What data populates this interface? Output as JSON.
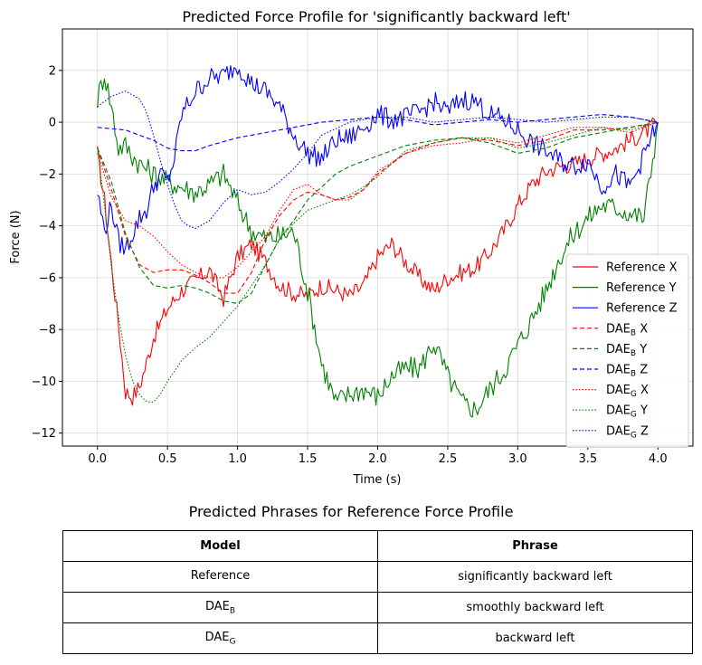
{
  "chart_data": {
    "type": "line",
    "title": "Predicted Force Profile for 'significantly backward left'",
    "xlabel": "Time (s)",
    "ylabel": "Force (N)",
    "xlim": [
      -0.25,
      4.25
    ],
    "ylim": [
      -12.5,
      3.6
    ],
    "xticks": [
      0.0,
      0.5,
      1.0,
      1.5,
      2.0,
      2.5,
      3.0,
      3.5,
      4.0
    ],
    "xtick_labels": [
      "0.0",
      "0.5",
      "1.0",
      "1.5",
      "2.0",
      "2.5",
      "3.0",
      "3.5",
      "4.0"
    ],
    "yticks": [
      -12,
      -10,
      -8,
      -6,
      -4,
      -2,
      0,
      2
    ],
    "ytick_labels": [
      "−12",
      "−10",
      "−8",
      "−6",
      "−4",
      "−2",
      "0",
      "2"
    ],
    "grid": true,
    "legend_position": "lower-right",
    "series": [
      {
        "name": "Reference X",
        "name_base": "Reference X",
        "color": "#ff0000",
        "style": "solid",
        "noise": 0.35,
        "x": [
          0,
          0.05,
          0.1,
          0.15,
          0.2,
          0.25,
          0.3,
          0.35,
          0.4,
          0.5,
          0.6,
          0.8,
          0.9,
          1.0,
          1.1,
          1.2,
          1.3,
          1.4,
          1.5,
          1.6,
          1.7,
          1.8,
          1.9,
          2.0,
          2.1,
          2.2,
          2.3,
          2.4,
          2.5,
          2.6,
          2.7,
          2.8,
          2.9,
          3.0,
          3.1,
          3.2,
          3.3,
          3.4,
          3.5,
          3.6,
          3.7,
          3.8,
          3.9,
          4.0
        ],
        "y": [
          -1.2,
          -3.0,
          -5.5,
          -7.8,
          -10.4,
          -10.6,
          -10.2,
          -9.3,
          -8.3,
          -7.2,
          -6.5,
          -5.7,
          -6.8,
          -5.2,
          -4.7,
          -5.4,
          -6.3,
          -6.6,
          -6.7,
          -6.3,
          -6.5,
          -6.7,
          -6.3,
          -5.2,
          -4.7,
          -5.4,
          -6.0,
          -6.5,
          -6.0,
          -5.8,
          -5.6,
          -5.0,
          -4.2,
          -3.2,
          -2.4,
          -1.9,
          -1.7,
          -1.6,
          -1.4,
          -1.2,
          -1.0,
          -0.7,
          -0.4,
          0.0
        ]
      },
      {
        "name": "Reference Y",
        "name_base": "Reference Y",
        "color": "#008000",
        "style": "solid",
        "noise": 0.45,
        "x": [
          0,
          0.05,
          0.1,
          0.15,
          0.2,
          0.25,
          0.3,
          0.4,
          0.5,
          0.6,
          0.7,
          0.8,
          0.9,
          1.0,
          1.1,
          1.2,
          1.3,
          1.4,
          1.5,
          1.6,
          1.7,
          1.8,
          1.9,
          2.0,
          2.1,
          2.2,
          2.3,
          2.4,
          2.5,
          2.6,
          2.7,
          2.8,
          2.9,
          3.0,
          3.1,
          3.2,
          3.3,
          3.4,
          3.5,
          3.6,
          3.7,
          3.8,
          3.9,
          4.0
        ],
        "y": [
          0.9,
          1.9,
          0.6,
          -1.0,
          -0.9,
          -1.3,
          -1.6,
          -2.0,
          -2.3,
          -2.5,
          -2.7,
          -2.4,
          -2.0,
          -3.1,
          -4.2,
          -4.5,
          -4.4,
          -4.2,
          -6.5,
          -9.3,
          -10.8,
          -10.5,
          -10.3,
          -10.6,
          -9.8,
          -9.5,
          -9.5,
          -8.5,
          -9.8,
          -10.8,
          -11.1,
          -10.3,
          -9.6,
          -8.6,
          -7.6,
          -6.5,
          -5.2,
          -4.3,
          -3.7,
          -3.2,
          -3.3,
          -3.5,
          -3.7,
          0.0
        ]
      },
      {
        "name": "Reference Z",
        "name_base": "Reference Z",
        "color": "#0000ff",
        "style": "solid",
        "noise": 0.4,
        "x": [
          0,
          0.05,
          0.1,
          0.15,
          0.2,
          0.25,
          0.3,
          0.35,
          0.4,
          0.45,
          0.5,
          0.55,
          0.6,
          0.7,
          0.8,
          0.9,
          1.0,
          1.1,
          1.2,
          1.3,
          1.4,
          1.5,
          1.6,
          1.7,
          1.8,
          1.9,
          2.0,
          2.1,
          2.2,
          2.3,
          2.4,
          2.5,
          2.6,
          2.7,
          2.8,
          2.9,
          3.0,
          3.1,
          3.2,
          3.3,
          3.4,
          3.5,
          3.6,
          3.7,
          3.8,
          3.9,
          4.0
        ],
        "y": [
          -2.7,
          -4.2,
          -3.2,
          -4.6,
          -4.9,
          -4.3,
          -3.7,
          -3.4,
          -2.5,
          -2.0,
          -2.3,
          -1.4,
          0.3,
          1.2,
          1.7,
          1.8,
          2.2,
          1.5,
          1.2,
          0.6,
          -0.5,
          -1.2,
          -1.4,
          -0.7,
          -0.6,
          -0.2,
          0.3,
          0.1,
          0.2,
          0.4,
          0.8,
          0.4,
          0.9,
          0.8,
          0.3,
          0.1,
          -0.3,
          -0.8,
          -1.1,
          -1.5,
          -1.7,
          -1.5,
          -2.5,
          -2.0,
          -2.5,
          -1.3,
          0.0
        ]
      },
      {
        "name": "DAE_B X",
        "name_base": "DAE",
        "name_sub": "B",
        "name_suffix": " X",
        "color": "#ff0000",
        "style": "dashed",
        "x": [
          0,
          0.1,
          0.2,
          0.3,
          0.4,
          0.5,
          0.6,
          0.7,
          0.8,
          0.9,
          1.0,
          1.1,
          1.2,
          1.3,
          1.4,
          1.5,
          1.6,
          1.7,
          1.8,
          1.9,
          2.0,
          2.2,
          2.4,
          2.6,
          2.8,
          3.0,
          3.2,
          3.4,
          3.6,
          3.8,
          4.0
        ],
        "y": [
          -1.0,
          -2.6,
          -4.4,
          -5.5,
          -5.8,
          -5.7,
          -5.7,
          -5.9,
          -6.2,
          -6.6,
          -6.6,
          -5.8,
          -4.5,
          -3.6,
          -3.0,
          -2.7,
          -2.8,
          -3.0,
          -2.9,
          -2.6,
          -2.0,
          -1.2,
          -0.8,
          -0.6,
          -0.7,
          -0.9,
          -0.7,
          -0.3,
          -0.3,
          -0.2,
          0.0
        ]
      },
      {
        "name": "DAE_B Y",
        "name_base": "DAE",
        "name_sub": "B",
        "name_suffix": " Y",
        "color": "#008000",
        "style": "dashed",
        "x": [
          0,
          0.1,
          0.2,
          0.3,
          0.4,
          0.5,
          0.6,
          0.7,
          0.8,
          0.9,
          1.0,
          1.1,
          1.2,
          1.3,
          1.4,
          1.5,
          1.6,
          1.7,
          1.8,
          1.9,
          2.0,
          2.2,
          2.4,
          2.6,
          2.8,
          3.0,
          3.2,
          3.4,
          3.6,
          3.8,
          4.0
        ],
        "y": [
          -1.0,
          -2.3,
          -4.3,
          -5.6,
          -6.3,
          -6.4,
          -6.3,
          -6.4,
          -6.6,
          -6.9,
          -7.0,
          -6.6,
          -5.5,
          -4.5,
          -3.8,
          -3.0,
          -2.5,
          -2.0,
          -1.7,
          -1.5,
          -1.3,
          -0.9,
          -0.7,
          -0.6,
          -0.8,
          -1.2,
          -1.0,
          -0.6,
          -0.4,
          -0.2,
          0.0
        ]
      },
      {
        "name": "DAE_B Z",
        "name_base": "DAE",
        "name_sub": "B",
        "name_suffix": " Z",
        "color": "#0000ff",
        "style": "dashed",
        "x": [
          0,
          0.2,
          0.4,
          0.5,
          0.6,
          0.7,
          0.8,
          1.0,
          1.2,
          1.4,
          1.6,
          1.8,
          2.0,
          2.2,
          2.4,
          2.6,
          2.8,
          3.0,
          3.2,
          3.4,
          3.6,
          3.8,
          4.0
        ],
        "y": [
          -0.2,
          -0.3,
          -0.7,
          -1.0,
          -1.1,
          -1.1,
          -0.9,
          -0.6,
          -0.4,
          -0.2,
          0.0,
          0.1,
          0.2,
          0.1,
          -0.1,
          0.0,
          0.1,
          0.0,
          0.1,
          0.2,
          0.3,
          0.2,
          0.0
        ]
      },
      {
        "name": "DAE_G X",
        "name_base": "DAE",
        "name_sub": "G",
        "name_suffix": " X",
        "color": "#ff0000",
        "style": "dotted",
        "x": [
          0,
          0.1,
          0.2,
          0.3,
          0.4,
          0.5,
          0.6,
          0.7,
          0.8,
          0.9,
          1.0,
          1.1,
          1.2,
          1.3,
          1.4,
          1.5,
          1.6,
          1.7,
          1.8,
          1.9,
          2.0,
          2.2,
          2.4,
          2.6,
          2.8,
          3.0,
          3.2,
          3.4,
          3.6,
          3.8,
          4.0
        ],
        "y": [
          -1.2,
          -2.9,
          -3.8,
          -4.0,
          -4.4,
          -5.0,
          -5.5,
          -5.8,
          -6.0,
          -6.0,
          -5.6,
          -5.0,
          -4.4,
          -3.4,
          -2.6,
          -2.4,
          -2.8,
          -3.0,
          -3.0,
          -2.6,
          -1.9,
          -1.2,
          -0.9,
          -0.8,
          -0.6,
          -0.8,
          -0.5,
          -0.2,
          -0.2,
          -0.4,
          0.0
        ]
      },
      {
        "name": "DAE_G Y",
        "name_base": "DAE",
        "name_sub": "G",
        "name_suffix": " Y",
        "color": "#008000",
        "style": "dotted",
        "x": [
          0,
          0.05,
          0.1,
          0.15,
          0.2,
          0.25,
          0.3,
          0.35,
          0.4,
          0.45,
          0.5,
          0.6,
          0.7,
          0.8,
          0.9,
          1.0,
          1.1,
          1.2,
          1.3,
          1.4,
          1.5,
          1.6,
          1.7,
          1.8,
          1.9,
          2.0,
          2.2,
          2.4,
          2.6,
          2.8,
          3.0,
          3.2,
          3.4,
          3.6,
          3.8,
          4.0
        ],
        "y": [
          -1.0,
          -3.2,
          -5.6,
          -7.5,
          -9.0,
          -10.0,
          -10.5,
          -10.8,
          -10.8,
          -10.5,
          -10.0,
          -9.2,
          -8.7,
          -8.3,
          -7.7,
          -7.1,
          -6.3,
          -5.5,
          -4.5,
          -3.9,
          -3.4,
          -3.2,
          -3.0,
          -2.8,
          -2.5,
          -2.1,
          -1.1,
          -0.8,
          -0.6,
          -0.6,
          -1.0,
          -0.8,
          -0.5,
          -0.2,
          -0.3,
          0.0
        ]
      },
      {
        "name": "DAE_G Z",
        "name_base": "DAE",
        "name_sub": "G",
        "name_suffix": " Z",
        "color": "#0000ff",
        "style": "dotted",
        "x": [
          0,
          0.1,
          0.2,
          0.3,
          0.35,
          0.4,
          0.45,
          0.5,
          0.55,
          0.6,
          0.65,
          0.7,
          0.8,
          0.9,
          1.0,
          1.1,
          1.2,
          1.3,
          1.4,
          1.5,
          1.6,
          1.8,
          2.0,
          2.2,
          2.4,
          2.6,
          2.8,
          3.0,
          3.2,
          3.4,
          3.6,
          3.8,
          4.0
        ],
        "y": [
          0.6,
          1.0,
          1.2,
          0.9,
          0.4,
          -0.5,
          -1.5,
          -2.4,
          -3.2,
          -3.8,
          -4.0,
          -4.1,
          -3.8,
          -3.1,
          -2.6,
          -2.8,
          -2.7,
          -2.3,
          -1.8,
          -1.2,
          -0.5,
          0.0,
          0.2,
          0.2,
          0.0,
          0.1,
          0.2,
          0.1,
          0.0,
          0.1,
          0.2,
          0.2,
          0.0
        ]
      }
    ]
  },
  "table": {
    "title": "Predicted Phrases for Reference Force Profile",
    "headers": [
      "Model",
      "Phrase"
    ],
    "rows": [
      {
        "model_base": "Reference",
        "model_sub": "",
        "phrase": "significantly backward left"
      },
      {
        "model_base": "DAE",
        "model_sub": "B",
        "phrase": "smoothly backward left"
      },
      {
        "model_base": "DAE",
        "model_sub": "G",
        "phrase": "backward left"
      }
    ]
  }
}
